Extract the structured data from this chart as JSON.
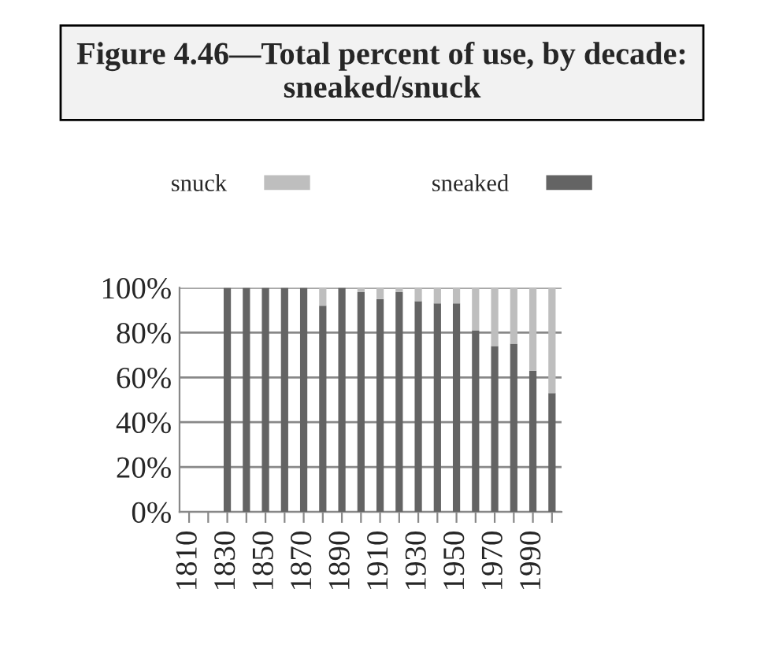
{
  "chart_data": {
    "type": "bar",
    "title": "Figure 4.46—Total percent of use, by decade: sneaked/snuck",
    "categories": [
      "1810",
      null,
      "1830",
      null,
      "1850",
      null,
      "1870",
      null,
      "1890",
      null,
      "1910",
      null,
      "1930",
      null,
      "1950",
      null,
      "1970",
      null,
      "1990",
      null
    ],
    "series": [
      {
        "name": "sneaked",
        "color": "#646464",
        "values": [
          null,
          null,
          100,
          100,
          100,
          100,
          100,
          92,
          100,
          98,
          95,
          98,
          94,
          93,
          93,
          81,
          74,
          75,
          63,
          53
        ]
      },
      {
        "name": "snuck",
        "color": "#bebebe",
        "values": [
          null,
          null,
          null,
          null,
          null,
          null,
          null,
          8,
          null,
          2,
          5,
          2,
          6,
          7,
          7,
          19,
          26,
          25,
          37,
          47
        ]
      }
    ],
    "stacked": true,
    "ylim": [
      0,
      100
    ],
    "yticks": [
      {
        "value": 0,
        "label": "0%"
      },
      {
        "value": 20,
        "label": "20%"
      },
      {
        "value": 40,
        "label": "40%"
      },
      {
        "value": 60,
        "label": "60%"
      },
      {
        "value": 80,
        "label": "80%"
      },
      {
        "value": 100,
        "label": "100%"
      }
    ],
    "grid": "y",
    "legend": "top"
  }
}
